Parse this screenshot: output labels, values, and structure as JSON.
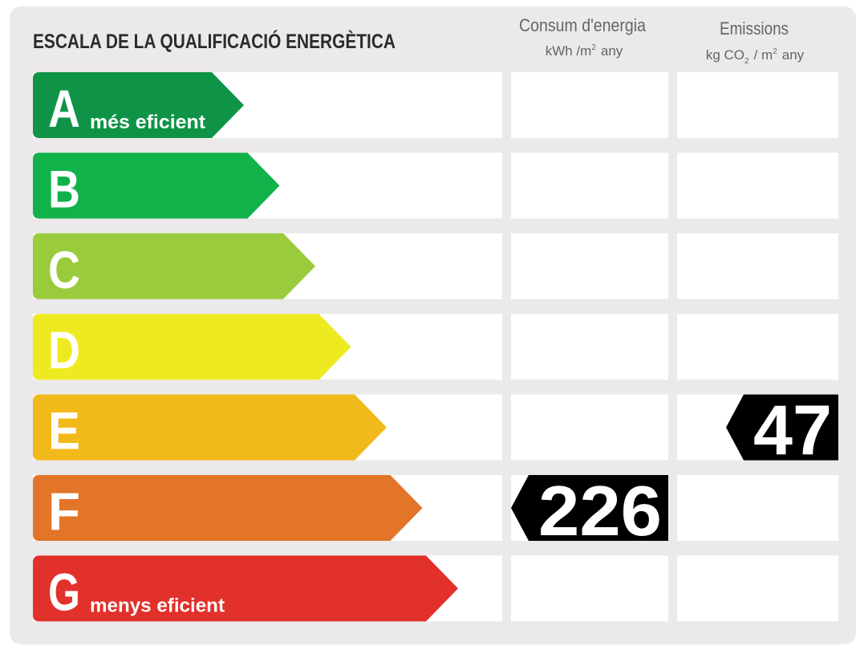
{
  "title": "ESCALA DE LA QUALIFICACIÓ ENERGÈTICA",
  "columns": {
    "consumption": {
      "title": "Consum d'energia",
      "unit": [
        "kWh /m",
        "2",
        "any"
      ]
    },
    "emissions": {
      "title": "Emissions",
      "unit": [
        "kg CO",
        "2",
        "/ m",
        "2",
        "any"
      ]
    }
  },
  "rows": [
    {
      "letter": "A",
      "note": "més eficient",
      "color": "#0f9447"
    },
    {
      "letter": "B",
      "color": "#12b24b"
    },
    {
      "letter": "C",
      "color": "#9acb3c"
    },
    {
      "letter": "D",
      "color": "#eeea22"
    },
    {
      "letter": "E",
      "color": "#f2b91a",
      "emissions": 47
    },
    {
      "letter": "F",
      "color": "#e37528",
      "consumption": 226
    },
    {
      "letter": "G",
      "note": "menys eficient",
      "color": "#e2302b"
    }
  ]
}
